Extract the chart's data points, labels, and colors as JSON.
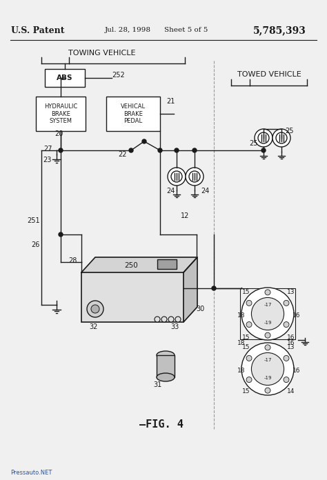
{
  "bg_color": "#f0f0f0",
  "line_color": "#1a1a1a",
  "title_left": "U.S. Patent",
  "title_mid": "Jul. 28, 1998",
  "title_mid2": "Sheet 5 of 5",
  "title_right": "5,785,393",
  "section_towing": "TOWING VEHICLE",
  "section_towed": "TOWED VEHICLE",
  "fig_label": "—FIG. 4",
  "watermark": "Pressauto.NET",
  "watermark_color": "#2255aa",
  "labels": {
    "ABS": "ABS",
    "HBS": "HYDRAULIC\nBRAKE\nSYSTEM",
    "VBP": "VEHICAL\nBRAKE\nPEDAL"
  }
}
